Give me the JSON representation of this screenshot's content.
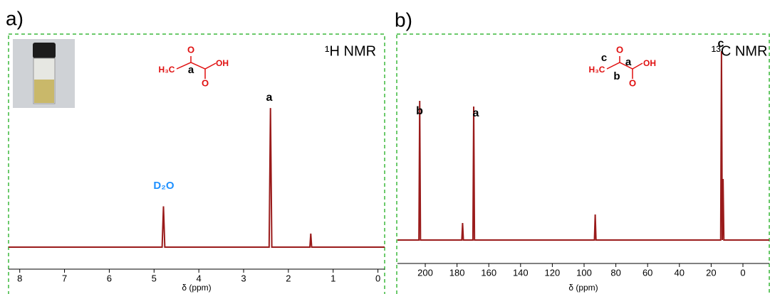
{
  "chart_data": [
    {
      "type": "line",
      "panel": "a)",
      "x_label": "δ (ppm)",
      "x": [
        8.25,
        4.82,
        4.79,
        4.76,
        2.43,
        2.4,
        2.37,
        1.52,
        1.5,
        1.48,
        -0.15
      ],
      "series": [
        {
          "color": "#9a1b1b",
          "values": [
            0,
            0,
            27,
            0,
            0,
            92,
            0,
            0,
            9,
            0,
            0
          ]
        }
      ],
      "xlim": [
        8.25,
        -0.15
      ],
      "ylim": [
        -15,
        140
      ],
      "xticks": [
        8,
        7,
        6,
        5,
        4,
        3,
        2,
        1,
        0
      ],
      "annotations": [
        "a",
        "D₂O",
        "¹H NMR",
        "H₃C",
        "O",
        "OH",
        "O",
        "a"
      ]
    },
    {
      "type": "line",
      "panel": "b)",
      "x_label": "δ (ppm)",
      "x": [
        217.5,
        204,
        203.5,
        203,
        177,
        176.5,
        176,
        170,
        169.5,
        169,
        93.5,
        93,
        92.5,
        14,
        13.5,
        13,
        12.5,
        12,
        -16.6
      ],
      "series": [
        {
          "color": "#9a1b1b",
          "values": [
            0,
            0,
            98,
            0,
            0,
            12,
            0,
            0,
            94,
            0,
            0,
            18,
            0,
            0,
            133,
            0,
            43,
            0,
            0
          ]
        }
      ],
      "xlim": [
        217.5,
        -16.6
      ],
      "ylim": [
        -17,
        145
      ],
      "xticks": [
        200,
        180,
        160,
        140,
        120,
        100,
        80,
        60,
        40,
        20,
        0
      ],
      "annotations": [
        "b",
        "a",
        "c",
        "¹³C NMR",
        "H₃C",
        "O",
        "OH",
        "O",
        "c",
        "b",
        "a"
      ]
    }
  ]
}
